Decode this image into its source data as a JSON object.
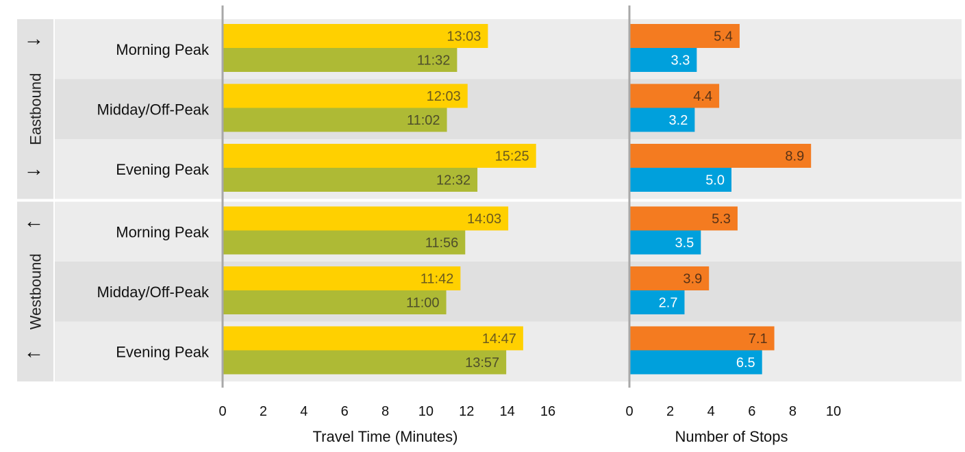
{
  "chart_data": {
    "type": "bar",
    "groups": [
      {
        "name": "Eastbound",
        "arrow": "→",
        "rows": [
          "Morning Peak",
          "Midday/Off-Peak",
          "Evening Peak"
        ]
      },
      {
        "name": "Westbound",
        "arrow": "←",
        "rows": [
          "Morning Peak",
          "Midday/Off-Peak",
          "Evening Peak"
        ]
      }
    ],
    "panels": [
      {
        "xlabel": "Travel Time (Minutes)",
        "xlim": [
          0,
          16
        ],
        "ticks": [
          "0",
          "2",
          "4",
          "6",
          "8",
          "10",
          "12",
          "14",
          "16"
        ],
        "series": [
          {
            "color": "#FFD000",
            "label_color": "#6b5a1e",
            "values": [
              13.05,
              12.05,
              15.4167,
              14.05,
              11.7,
              14.7833
            ],
            "labels": [
              "13:03",
              "12:03",
              "15:25",
              "14:03",
              "11:42",
              "14:47"
            ]
          },
          {
            "color": "#AEBA35",
            "label_color": "#4e4e2a",
            "values": [
              11.5333,
              11.0333,
              12.5333,
              11.9333,
              11.0,
              13.95
            ],
            "labels": [
              "11:32",
              "11:02",
              "12:32",
              "11:56",
              "11:00",
              "13:57"
            ]
          }
        ]
      },
      {
        "xlabel": "Number of Stops",
        "xlim": [
          0,
          10
        ],
        "ticks": [
          "0",
          "2",
          "4",
          "6",
          "8",
          "10"
        ],
        "series": [
          {
            "color": "#F47B20",
            "label_color": "#5a3316",
            "values": [
              5.4,
              4.4,
              8.9,
              5.3,
              3.9,
              7.1
            ],
            "labels": [
              "5.4",
              "4.4",
              "8.9",
              "5.3",
              "3.9",
              "7.1"
            ]
          },
          {
            "color": "#00A0DC",
            "label_color": "#ffffff",
            "values": [
              3.3,
              3.2,
              5.0,
              3.5,
              2.7,
              6.5
            ],
            "labels": [
              "3.3",
              "3.2",
              "5.0",
              "3.5",
              "2.7",
              "6.5"
            ]
          }
        ]
      }
    ],
    "grid": false,
    "legend": "none"
  }
}
